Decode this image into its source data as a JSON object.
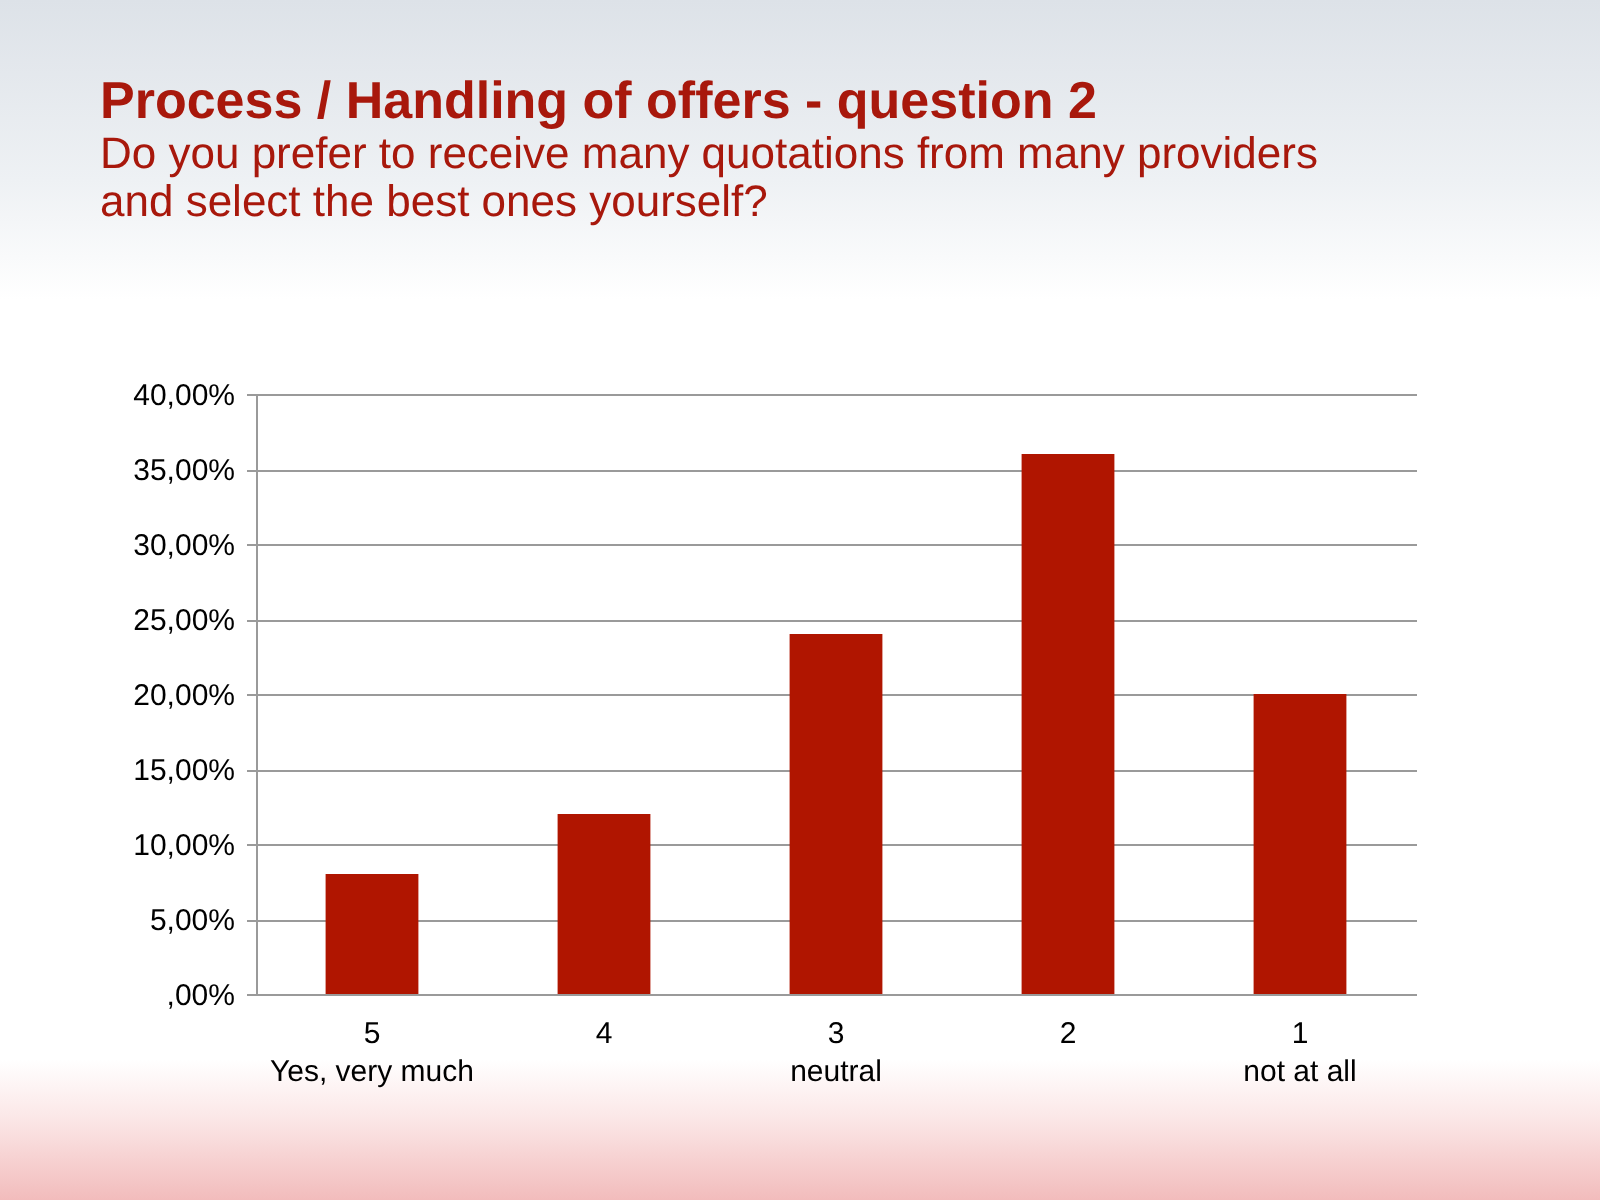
{
  "chart_data": {
    "type": "bar",
    "title": "Process / Handling of offers - question 2",
    "subtitle": "Do you prefer to receive many quotations from many providers and select the best ones yourself?",
    "categories": [
      "5\nYes, very much",
      "4",
      "3\nneutral",
      "2",
      "1\nnot at all"
    ],
    "values": [
      8,
      12,
      24,
      36,
      20
    ],
    "color": "#b01500",
    "ylim": [
      0,
      40
    ],
    "yticks": [
      {
        "value": 0,
        "label": ",00%"
      },
      {
        "value": 5,
        "label": "5,00%"
      },
      {
        "value": 10,
        "label": "10,00%"
      },
      {
        "value": 15,
        "label": "15,00%"
      },
      {
        "value": 20,
        "label": "20,00%"
      },
      {
        "value": 25,
        "label": "25,00%"
      },
      {
        "value": 30,
        "label": "30,00%"
      },
      {
        "value": 35,
        "label": "35,00%"
      },
      {
        "value": 40,
        "label": "40,00%"
      }
    ],
    "grid": "y"
  }
}
